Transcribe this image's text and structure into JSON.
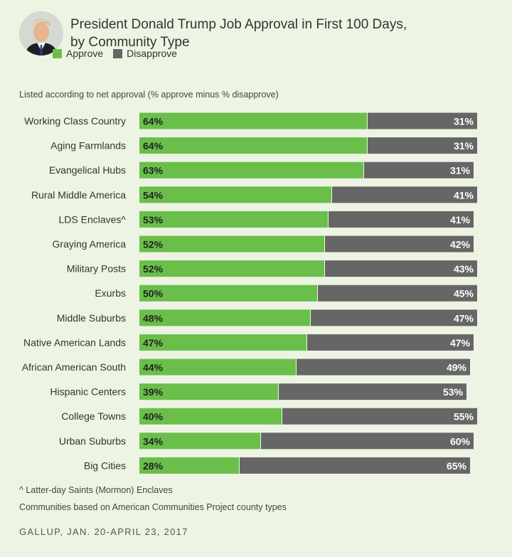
{
  "header": {
    "title_line1": "President Donald Trump Job Approval in First 100 Days,",
    "title_line2": "by Community Type"
  },
  "legend": {
    "approve_label": "Approve",
    "disapprove_label": "Disapprove"
  },
  "subtitle": "Listed according to net approval (% approve minus % disapprove)",
  "footnotes": {
    "note1": "^ Latter-day Saints (Mormon) Enclaves",
    "note2": "Communities based on American Communities Project county types"
  },
  "source": "GALLUP, JAN. 20-APRIL 23, 2017",
  "colors": {
    "approve": "#6abf4b",
    "disapprove": "#666666",
    "background": "#edf4e3"
  },
  "chart_data": {
    "type": "bar",
    "orientation": "horizontal",
    "stacked": true,
    "title": "President Donald Trump Job Approval in First 100 Days, by Community Type",
    "categories": [
      "Working Class Country",
      "Aging Farmlands",
      "Evangelical Hubs",
      "Rural Middle America",
      "LDS Enclaves^",
      "Graying America",
      "Military Posts",
      "Exurbs",
      "Middle Suburbs",
      "Native American Lands",
      "African American South",
      "Hispanic Centers",
      "College Towns",
      "Urban Suburbs",
      "Big Cities"
    ],
    "series": [
      {
        "name": "Approve",
        "color": "#6abf4b",
        "values": [
          64,
          64,
          63,
          54,
          53,
          52,
          52,
          50,
          48,
          47,
          44,
          39,
          40,
          34,
          28
        ]
      },
      {
        "name": "Disapprove",
        "color": "#666666",
        "values": [
          31,
          31,
          31,
          41,
          41,
          42,
          43,
          45,
          47,
          47,
          49,
          53,
          55,
          60,
          65
        ]
      }
    ],
    "value_suffix": "%",
    "xlim": [
      0,
      95
    ],
    "legend_position": "top-left",
    "grid": false
  }
}
